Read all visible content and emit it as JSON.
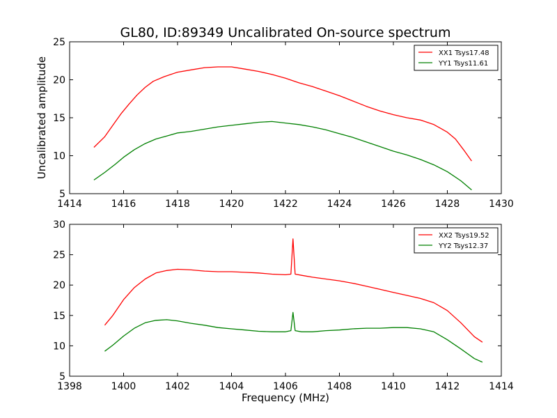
{
  "figure": {
    "title": "GL80, ID:89349 Uncalibrated On-source spectrum",
    "ylabel": "Uncalibrated amplitude",
    "xlabel": "Frequency (MHz)"
  },
  "chart_data": [
    {
      "type": "line",
      "xlim": [
        1414,
        1430
      ],
      "ylim": [
        5,
        25
      ],
      "xticks": [
        1414,
        1416,
        1418,
        1420,
        1422,
        1424,
        1426,
        1428,
        1430
      ],
      "yticks": [
        5,
        10,
        15,
        20,
        25
      ],
      "legend_position": "top-right",
      "series": [
        {
          "name": "XX1 Tsys17.48",
          "color": "#ff0000",
          "points": [
            [
              1414.9,
              11.1
            ],
            [
              1415.3,
              12.5
            ],
            [
              1415.6,
              14.0
            ],
            [
              1415.9,
              15.5
            ],
            [
              1416.2,
              16.8
            ],
            [
              1416.5,
              18.0
            ],
            [
              1416.8,
              19.0
            ],
            [
              1417.1,
              19.8
            ],
            [
              1417.5,
              20.4
            ],
            [
              1418.0,
              21.0
            ],
            [
              1418.5,
              21.3
            ],
            [
              1419.0,
              21.6
            ],
            [
              1419.5,
              21.7
            ],
            [
              1420.0,
              21.7
            ],
            [
              1420.5,
              21.4
            ],
            [
              1421.0,
              21.1
            ],
            [
              1421.5,
              20.7
            ],
            [
              1422.0,
              20.2
            ],
            [
              1422.5,
              19.6
            ],
            [
              1423.0,
              19.1
            ],
            [
              1423.5,
              18.5
            ],
            [
              1424.0,
              17.9
            ],
            [
              1424.5,
              17.2
            ],
            [
              1425.0,
              16.5
            ],
            [
              1425.5,
              15.9
            ],
            [
              1426.0,
              15.4
            ],
            [
              1426.5,
              15.0
            ],
            [
              1427.0,
              14.7
            ],
            [
              1427.5,
              14.1
            ],
            [
              1428.0,
              13.1
            ],
            [
              1428.3,
              12.2
            ],
            [
              1428.6,
              10.8
            ],
            [
              1428.9,
              9.3
            ]
          ]
        },
        {
          "name": "YY1 Tsys11.61",
          "color": "#008000",
          "points": [
            [
              1414.9,
              6.8
            ],
            [
              1415.3,
              7.8
            ],
            [
              1415.7,
              8.9
            ],
            [
              1416.0,
              9.8
            ],
            [
              1416.4,
              10.8
            ],
            [
              1416.8,
              11.6
            ],
            [
              1417.2,
              12.2
            ],
            [
              1417.6,
              12.6
            ],
            [
              1418.0,
              13.0
            ],
            [
              1418.5,
              13.2
            ],
            [
              1419.0,
              13.5
            ],
            [
              1419.5,
              13.8
            ],
            [
              1420.0,
              14.0
            ],
            [
              1420.5,
              14.2
            ],
            [
              1421.0,
              14.4
            ],
            [
              1421.5,
              14.5
            ],
            [
              1422.0,
              14.3
            ],
            [
              1422.5,
              14.1
            ],
            [
              1423.0,
              13.8
            ],
            [
              1423.5,
              13.4
            ],
            [
              1424.0,
              12.9
            ],
            [
              1424.5,
              12.4
            ],
            [
              1425.0,
              11.8
            ],
            [
              1425.5,
              11.2
            ],
            [
              1426.0,
              10.6
            ],
            [
              1426.5,
              10.1
            ],
            [
              1427.0,
              9.5
            ],
            [
              1427.5,
              8.8
            ],
            [
              1428.0,
              7.9
            ],
            [
              1428.5,
              6.7
            ],
            [
              1428.9,
              5.5
            ]
          ]
        }
      ]
    },
    {
      "type": "line",
      "xlim": [
        1398,
        1414
      ],
      "ylim": [
        5,
        30
      ],
      "xticks": [
        1398,
        1400,
        1402,
        1404,
        1406,
        1408,
        1410,
        1412,
        1414
      ],
      "yticks": [
        5,
        10,
        15,
        20,
        25,
        30
      ],
      "legend_position": "top-right",
      "series": [
        {
          "name": "XX2 Tsys19.52",
          "color": "#ff0000",
          "points": [
            [
              1399.3,
              13.4
            ],
            [
              1399.6,
              15.0
            ],
            [
              1400.0,
              17.6
            ],
            [
              1400.4,
              19.6
            ],
            [
              1400.8,
              21.0
            ],
            [
              1401.2,
              22.0
            ],
            [
              1401.6,
              22.4
            ],
            [
              1402.0,
              22.6
            ],
            [
              1402.5,
              22.5
            ],
            [
              1403.0,
              22.3
            ],
            [
              1403.5,
              22.2
            ],
            [
              1404.0,
              22.2
            ],
            [
              1404.5,
              22.1
            ],
            [
              1405.0,
              22.0
            ],
            [
              1405.5,
              21.8
            ],
            [
              1406.0,
              21.7
            ],
            [
              1406.2,
              21.8
            ],
            [
              1406.28,
              27.6
            ],
            [
              1406.36,
              21.8
            ],
            [
              1406.6,
              21.6
            ],
            [
              1407.0,
              21.3
            ],
            [
              1407.5,
              21.0
            ],
            [
              1408.0,
              20.7
            ],
            [
              1408.5,
              20.3
            ],
            [
              1409.0,
              19.8
            ],
            [
              1409.5,
              19.3
            ],
            [
              1410.0,
              18.8
            ],
            [
              1410.5,
              18.3
            ],
            [
              1411.0,
              17.8
            ],
            [
              1411.5,
              17.1
            ],
            [
              1412.0,
              15.8
            ],
            [
              1412.5,
              13.8
            ],
            [
              1413.0,
              11.5
            ],
            [
              1413.3,
              10.6
            ]
          ]
        },
        {
          "name": "YY2 Tsys12.37",
          "color": "#008000",
          "points": [
            [
              1399.3,
              9.1
            ],
            [
              1399.6,
              10.1
            ],
            [
              1400.0,
              11.6
            ],
            [
              1400.4,
              12.9
            ],
            [
              1400.8,
              13.8
            ],
            [
              1401.2,
              14.2
            ],
            [
              1401.6,
              14.3
            ],
            [
              1402.0,
              14.1
            ],
            [
              1402.5,
              13.7
            ],
            [
              1403.0,
              13.4
            ],
            [
              1403.5,
              13.0
            ],
            [
              1404.0,
              12.8
            ],
            [
              1404.5,
              12.6
            ],
            [
              1405.0,
              12.4
            ],
            [
              1405.5,
              12.3
            ],
            [
              1406.0,
              12.3
            ],
            [
              1406.2,
              12.5
            ],
            [
              1406.28,
              15.5
            ],
            [
              1406.36,
              12.5
            ],
            [
              1406.6,
              12.3
            ],
            [
              1407.0,
              12.3
            ],
            [
              1407.5,
              12.5
            ],
            [
              1408.0,
              12.6
            ],
            [
              1408.5,
              12.8
            ],
            [
              1409.0,
              12.9
            ],
            [
              1409.5,
              12.9
            ],
            [
              1410.0,
              13.0
            ],
            [
              1410.5,
              13.0
            ],
            [
              1411.0,
              12.8
            ],
            [
              1411.5,
              12.3
            ],
            [
              1412.0,
              11.0
            ],
            [
              1412.5,
              9.5
            ],
            [
              1413.0,
              7.9
            ],
            [
              1413.3,
              7.3
            ]
          ]
        }
      ]
    }
  ]
}
